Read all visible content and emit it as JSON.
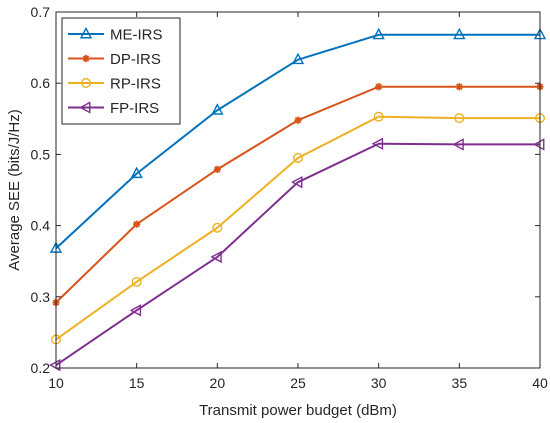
{
  "chart_data": {
    "type": "line",
    "title": "",
    "xlabel": "Transmit power budget (dBm)",
    "ylabel": "Average SEE (bits/J/Hz)",
    "x": [
      10,
      15,
      20,
      25,
      30,
      35,
      40
    ],
    "xlim": [
      10,
      40
    ],
    "ylim": [
      0.2,
      0.7
    ],
    "xticks": [
      10,
      15,
      20,
      25,
      30,
      35,
      40
    ],
    "yticks": [
      0.2,
      0.3,
      0.4,
      0.5,
      0.6,
      0.7
    ],
    "xtick_labels": [
      "10",
      "15",
      "20",
      "25",
      "30",
      "35",
      "40"
    ],
    "ytick_labels": [
      "0.2",
      "0.3",
      "0.4",
      "0.5",
      "0.6",
      "0.7"
    ],
    "grid": false,
    "legend_position": "top-left",
    "series": [
      {
        "name": "ME-IRS",
        "color": "#0072BD",
        "marker": "triangle-up-icon",
        "values": [
          0.368,
          0.473,
          0.562,
          0.633,
          0.668,
          0.668,
          0.668
        ]
      },
      {
        "name": "DP-IRS",
        "color": "#D95319",
        "marker": "asterisk-icon",
        "values": [
          0.292,
          0.402,
          0.479,
          0.548,
          0.595,
          0.595,
          0.595
        ]
      },
      {
        "name": "RP-IRS",
        "color": "#EDB120",
        "marker": "circle-icon",
        "values": [
          0.24,
          0.321,
          0.397,
          0.495,
          0.553,
          0.551,
          0.551
        ]
      },
      {
        "name": "FP-IRS",
        "color": "#7E2F8E",
        "marker": "triangle-left-icon",
        "values": [
          0.204,
          0.281,
          0.356,
          0.461,
          0.515,
          0.514,
          0.514
        ]
      }
    ]
  }
}
